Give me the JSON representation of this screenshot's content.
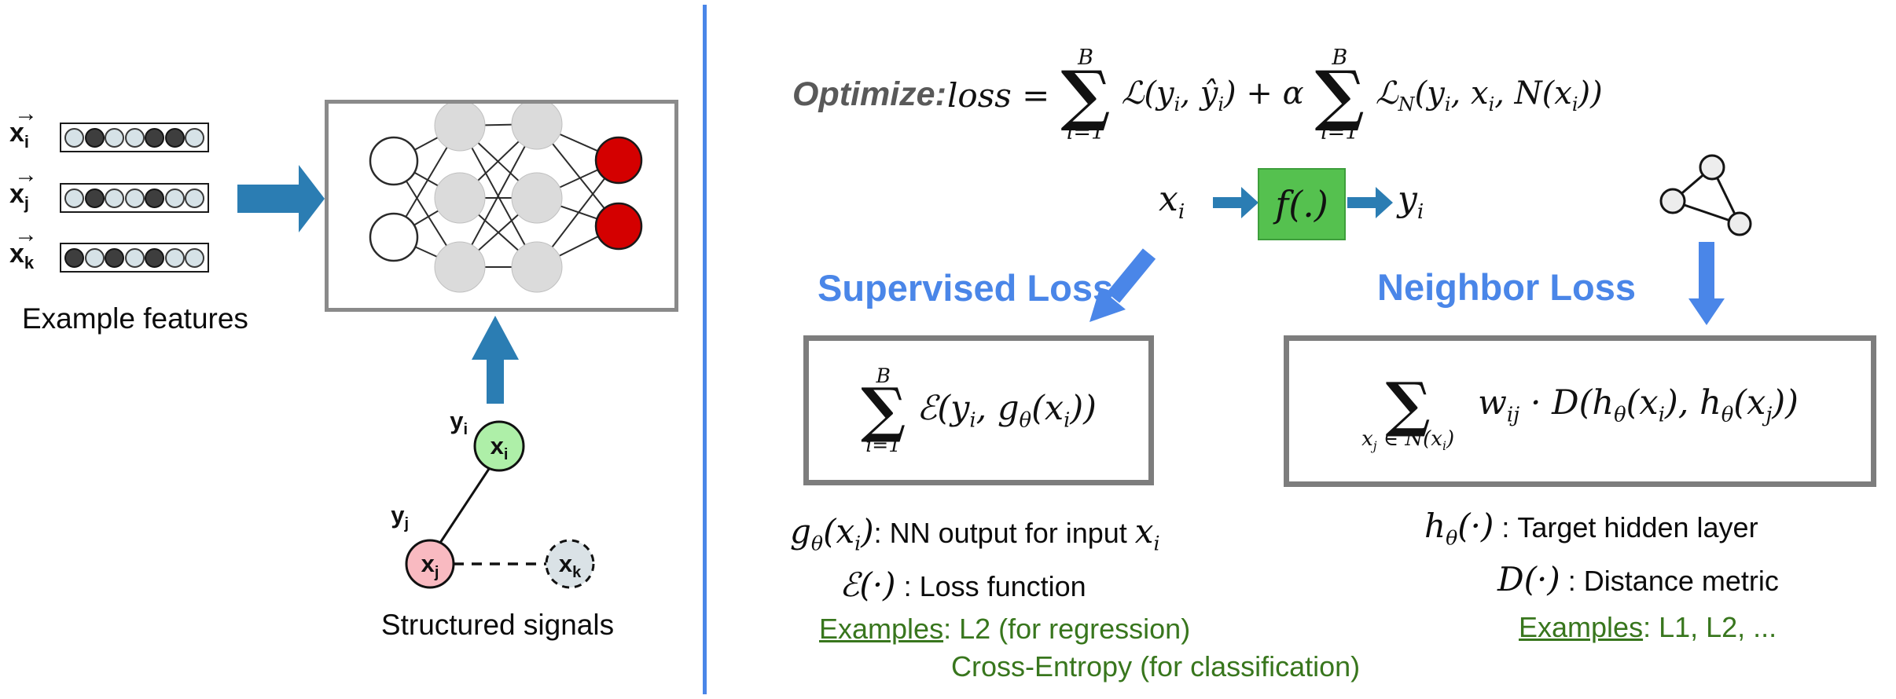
{
  "glyphs": {
    "sigma": "∑",
    "vec_arrow": "→"
  },
  "colors": {
    "divider_blue": "#4A86E8",
    "label_blue": "#4A86E8",
    "arrow_teal": "#2B7DB3",
    "box_border_gray": "#7D7D7D",
    "green_text": "#38761D",
    "fn_box_green": "#55C14F",
    "output_node_red": "#D40000",
    "hidden_node_gray": "#DBDBDB",
    "xi_node_green": "#AEEFA8",
    "xj_node_pink": "#F9BAC1",
    "xk_node_gray": "#DAE2E6"
  },
  "left_panel": {
    "feature_rows": [
      {
        "var": "x",
        "sub": "i",
        "dots": [
          0,
          1,
          0,
          0,
          1,
          1,
          0
        ]
      },
      {
        "var": "x",
        "sub": "j",
        "dots": [
          0,
          1,
          0,
          0,
          1,
          0,
          0
        ]
      },
      {
        "var": "x",
        "sub": "k",
        "dots": [
          1,
          0,
          1,
          0,
          1,
          0,
          0
        ]
      }
    ],
    "features_caption": "Example features",
    "signals_caption": "Structured signals",
    "graph_labels": {
      "yi": "y_{i}",
      "yj": "y_{j}",
      "xi": "x_{i}",
      "xj": "x_{j}",
      "xk": "x_{k}"
    }
  },
  "optimize": {
    "label": "Optimize:",
    "lhs": "loss =",
    "sum1_top": "B",
    "sum1_bottom": "i=1",
    "term1": "ℒ(y_{i}, ŷ_{i}) + α",
    "sum2_top": "B",
    "sum2_bottom": "i=1",
    "term2": "ℒ_{N}(y_{i}, x_{i}, N(x_{i}))"
  },
  "flow": {
    "input": "x_{i}",
    "fn": "f(.)",
    "output": "y_{i}"
  },
  "supervised": {
    "title": "Supervised Loss",
    "sum_top": "B",
    "sum_bottom": "i=1",
    "formula": "ℰ(y_{i}, g_{θ}(x_{i}))",
    "line1": "«g_{θ}(x_{i})»: NN output for input «x_{i}»",
    "line2": "«ℰ(·)» : Loss function",
    "examples_label": "Examples",
    "examples_1": ": L2 (for regression)",
    "examples_2": "Cross-Entropy (for classification)"
  },
  "neighbor": {
    "title": "Neighbor Loss",
    "sum_bottom": "x_{j} ∈ N(x_{i})",
    "formula": "w_{ij} · D(h_{θ}(x_{i}), h_{θ}(x_{j}))",
    "line1": "«h_{θ}(·)» : Target hidden layer",
    "line2": "«D(·)» : Distance metric",
    "examples_label": "Examples",
    "examples_1": ": L1, L2, ..."
  }
}
